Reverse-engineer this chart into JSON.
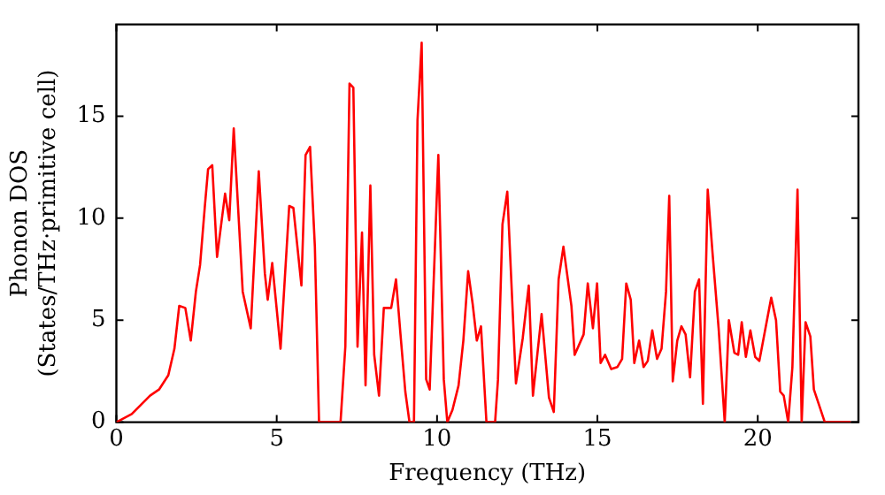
{
  "chart_data": {
    "type": "line",
    "xlabel": "Frequency (THz)",
    "ylabel": "Phonon DOS\n(States/THz·primitive cell)",
    "xlim": [
      0,
      23.14
    ],
    "ylim": [
      0,
      19.5
    ],
    "xticks": [
      0,
      5,
      10,
      15,
      20
    ],
    "yticks": [
      0,
      5,
      10,
      15
    ],
    "grid": false,
    "legend": false,
    "marker": "none",
    "line_style": "solid",
    "series": [
      {
        "color": "#ff0000",
        "x": [
          0,
          0.48,
          1.05,
          1.33,
          1.62,
          1.81,
          1.96,
          2.15,
          2.32,
          2.48,
          2.61,
          2.76,
          2.86,
          2.99,
          3.14,
          3.39,
          3.52,
          3.66,
          3.94,
          4.19,
          4.44,
          4.63,
          4.72,
          4.86,
          5.12,
          5.39,
          5.52,
          5.77,
          5.9,
          6.04,
          6.19,
          6.32,
          6.99,
          7.14,
          7.27,
          7.39,
          7.52,
          7.66,
          7.77,
          7.92,
          8.04,
          8.19,
          8.34,
          8.57,
          8.72,
          8.86,
          9.01,
          9.14,
          9.28,
          9.39,
          9.52,
          9.66,
          9.77,
          10.04,
          10.21,
          10.32,
          10.48,
          10.67,
          10.82,
          10.97,
          11.11,
          11.24,
          11.37,
          11.54,
          11.81,
          11.9,
          12.04,
          12.19,
          12.46,
          12.67,
          12.86,
          12.99,
          13.26,
          13.49,
          13.64,
          13.79,
          13.94,
          14.19,
          14.29,
          14.57,
          14.7,
          14.86,
          14.99,
          15.1,
          15.24,
          15.43,
          15.62,
          15.77,
          15.9,
          16.04,
          16.15,
          16.3,
          16.44,
          16.57,
          16.71,
          16.86,
          17.0,
          17.14,
          17.24,
          17.35,
          17.49,
          17.62,
          17.75,
          17.89,
          18.04,
          18.17,
          18.29,
          18.44,
          18.59,
          18.78,
          18.97,
          19.1,
          19.27,
          19.39,
          19.5,
          19.63,
          19.77,
          19.92,
          20.05,
          20.24,
          20.42,
          20.57,
          20.7,
          20.81,
          20.95,
          21.08,
          21.24,
          21.37,
          21.49,
          21.64,
          21.75,
          21.9,
          22.09,
          22.9
        ],
        "values": [
          0,
          0.4,
          1.3,
          1.6,
          2.3,
          3.6,
          5.7,
          5.6,
          4,
          6.4,
          7.7,
          10.6,
          12.4,
          12.6,
          8.1,
          11.2,
          9.9,
          14.4,
          6.4,
          4.6,
          12.3,
          7.3,
          6,
          7.8,
          3.6,
          10.6,
          10.5,
          6.7,
          13.1,
          13.5,
          8.6,
          0,
          0,
          3.7,
          16.6,
          16.4,
          3.7,
          9.3,
          1.8,
          11.6,
          3.3,
          1.3,
          5.6,
          5.6,
          7,
          4.3,
          1.5,
          0,
          0,
          14.8,
          18.6,
          2.1,
          1.6,
          13.1,
          2.1,
          0,
          0.6,
          1.8,
          4,
          7.4,
          5.8,
          4,
          4.7,
          0,
          0,
          2.1,
          9.7,
          11.3,
          1.9,
          4.1,
          6.7,
          1.3,
          5.3,
          1.2,
          0.5,
          7,
          8.6,
          5.7,
          3.3,
          4.3,
          6.8,
          4.6,
          6.8,
          2.9,
          3.3,
          2.6,
          2.7,
          3.1,
          6.8,
          6,
          2.9,
          4,
          2.7,
          3,
          4.5,
          3.1,
          3.6,
          6.4,
          11.1,
          2,
          4,
          4.7,
          4.3,
          2.2,
          6.4,
          7,
          0.9,
          11.4,
          8.3,
          4.6,
          0,
          5,
          3.4,
          3.3,
          4.9,
          3.2,
          4.5,
          3.2,
          3,
          4.6,
          6.1,
          5,
          1.5,
          1.3,
          0,
          2.7,
          11.4,
          0,
          4.9,
          4.2,
          1.6,
          0.9,
          0,
          0
        ]
      }
    ]
  }
}
